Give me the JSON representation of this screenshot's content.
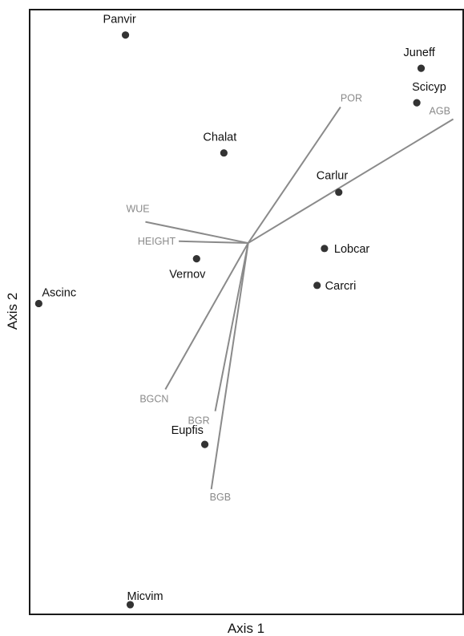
{
  "chart_data": {
    "type": "scatter",
    "title": "",
    "xlabel": "Axis 1",
    "ylabel": "Axis 2",
    "xlim": [
      0,
      100
    ],
    "ylim": [
      0,
      100
    ],
    "grid": false,
    "legend": "none",
    "origin": [
      50.4,
      61.4
    ],
    "points": [
      {
        "label": "Panvir",
        "x": 22.1,
        "y": 95.8
      },
      {
        "label": "Juneff",
        "x": 90.3,
        "y": 90.3
      },
      {
        "label": "Scicyp",
        "x": 89.3,
        "y": 84.6
      },
      {
        "label": "Chalat",
        "x": 44.8,
        "y": 76.3
      },
      {
        "label": "Carlur",
        "x": 71.3,
        "y": 69.8
      },
      {
        "label": "Lobcar",
        "x": 68.0,
        "y": 60.5
      },
      {
        "label": "Vernov",
        "x": 38.5,
        "y": 58.8
      },
      {
        "label": "Carcri",
        "x": 66.3,
        "y": 54.4
      },
      {
        "label": "Ascinc",
        "x": 2.1,
        "y": 51.4
      },
      {
        "label": "Eupfis",
        "x": 40.4,
        "y": 28.1
      },
      {
        "label": "Micvim",
        "x": 23.2,
        "y": 1.6
      }
    ],
    "vectors": [
      {
        "label": "POR",
        "x": 71.7,
        "y": 83.9
      },
      {
        "label": "AGB",
        "x": 97.7,
        "y": 81.9
      },
      {
        "label": "WUE",
        "x": 26.7,
        "y": 64.9
      },
      {
        "label": "HEIGHT",
        "x": 34.4,
        "y": 61.7
      },
      {
        "label": "BGCN",
        "x": 31.3,
        "y": 37.2
      },
      {
        "label": "BGR",
        "x": 42.8,
        "y": 33.6
      },
      {
        "label": "BGB",
        "x": 41.9,
        "y": 20.7
      }
    ],
    "colors": {
      "points": "#333333",
      "vectors": "#8a8a8a"
    }
  }
}
